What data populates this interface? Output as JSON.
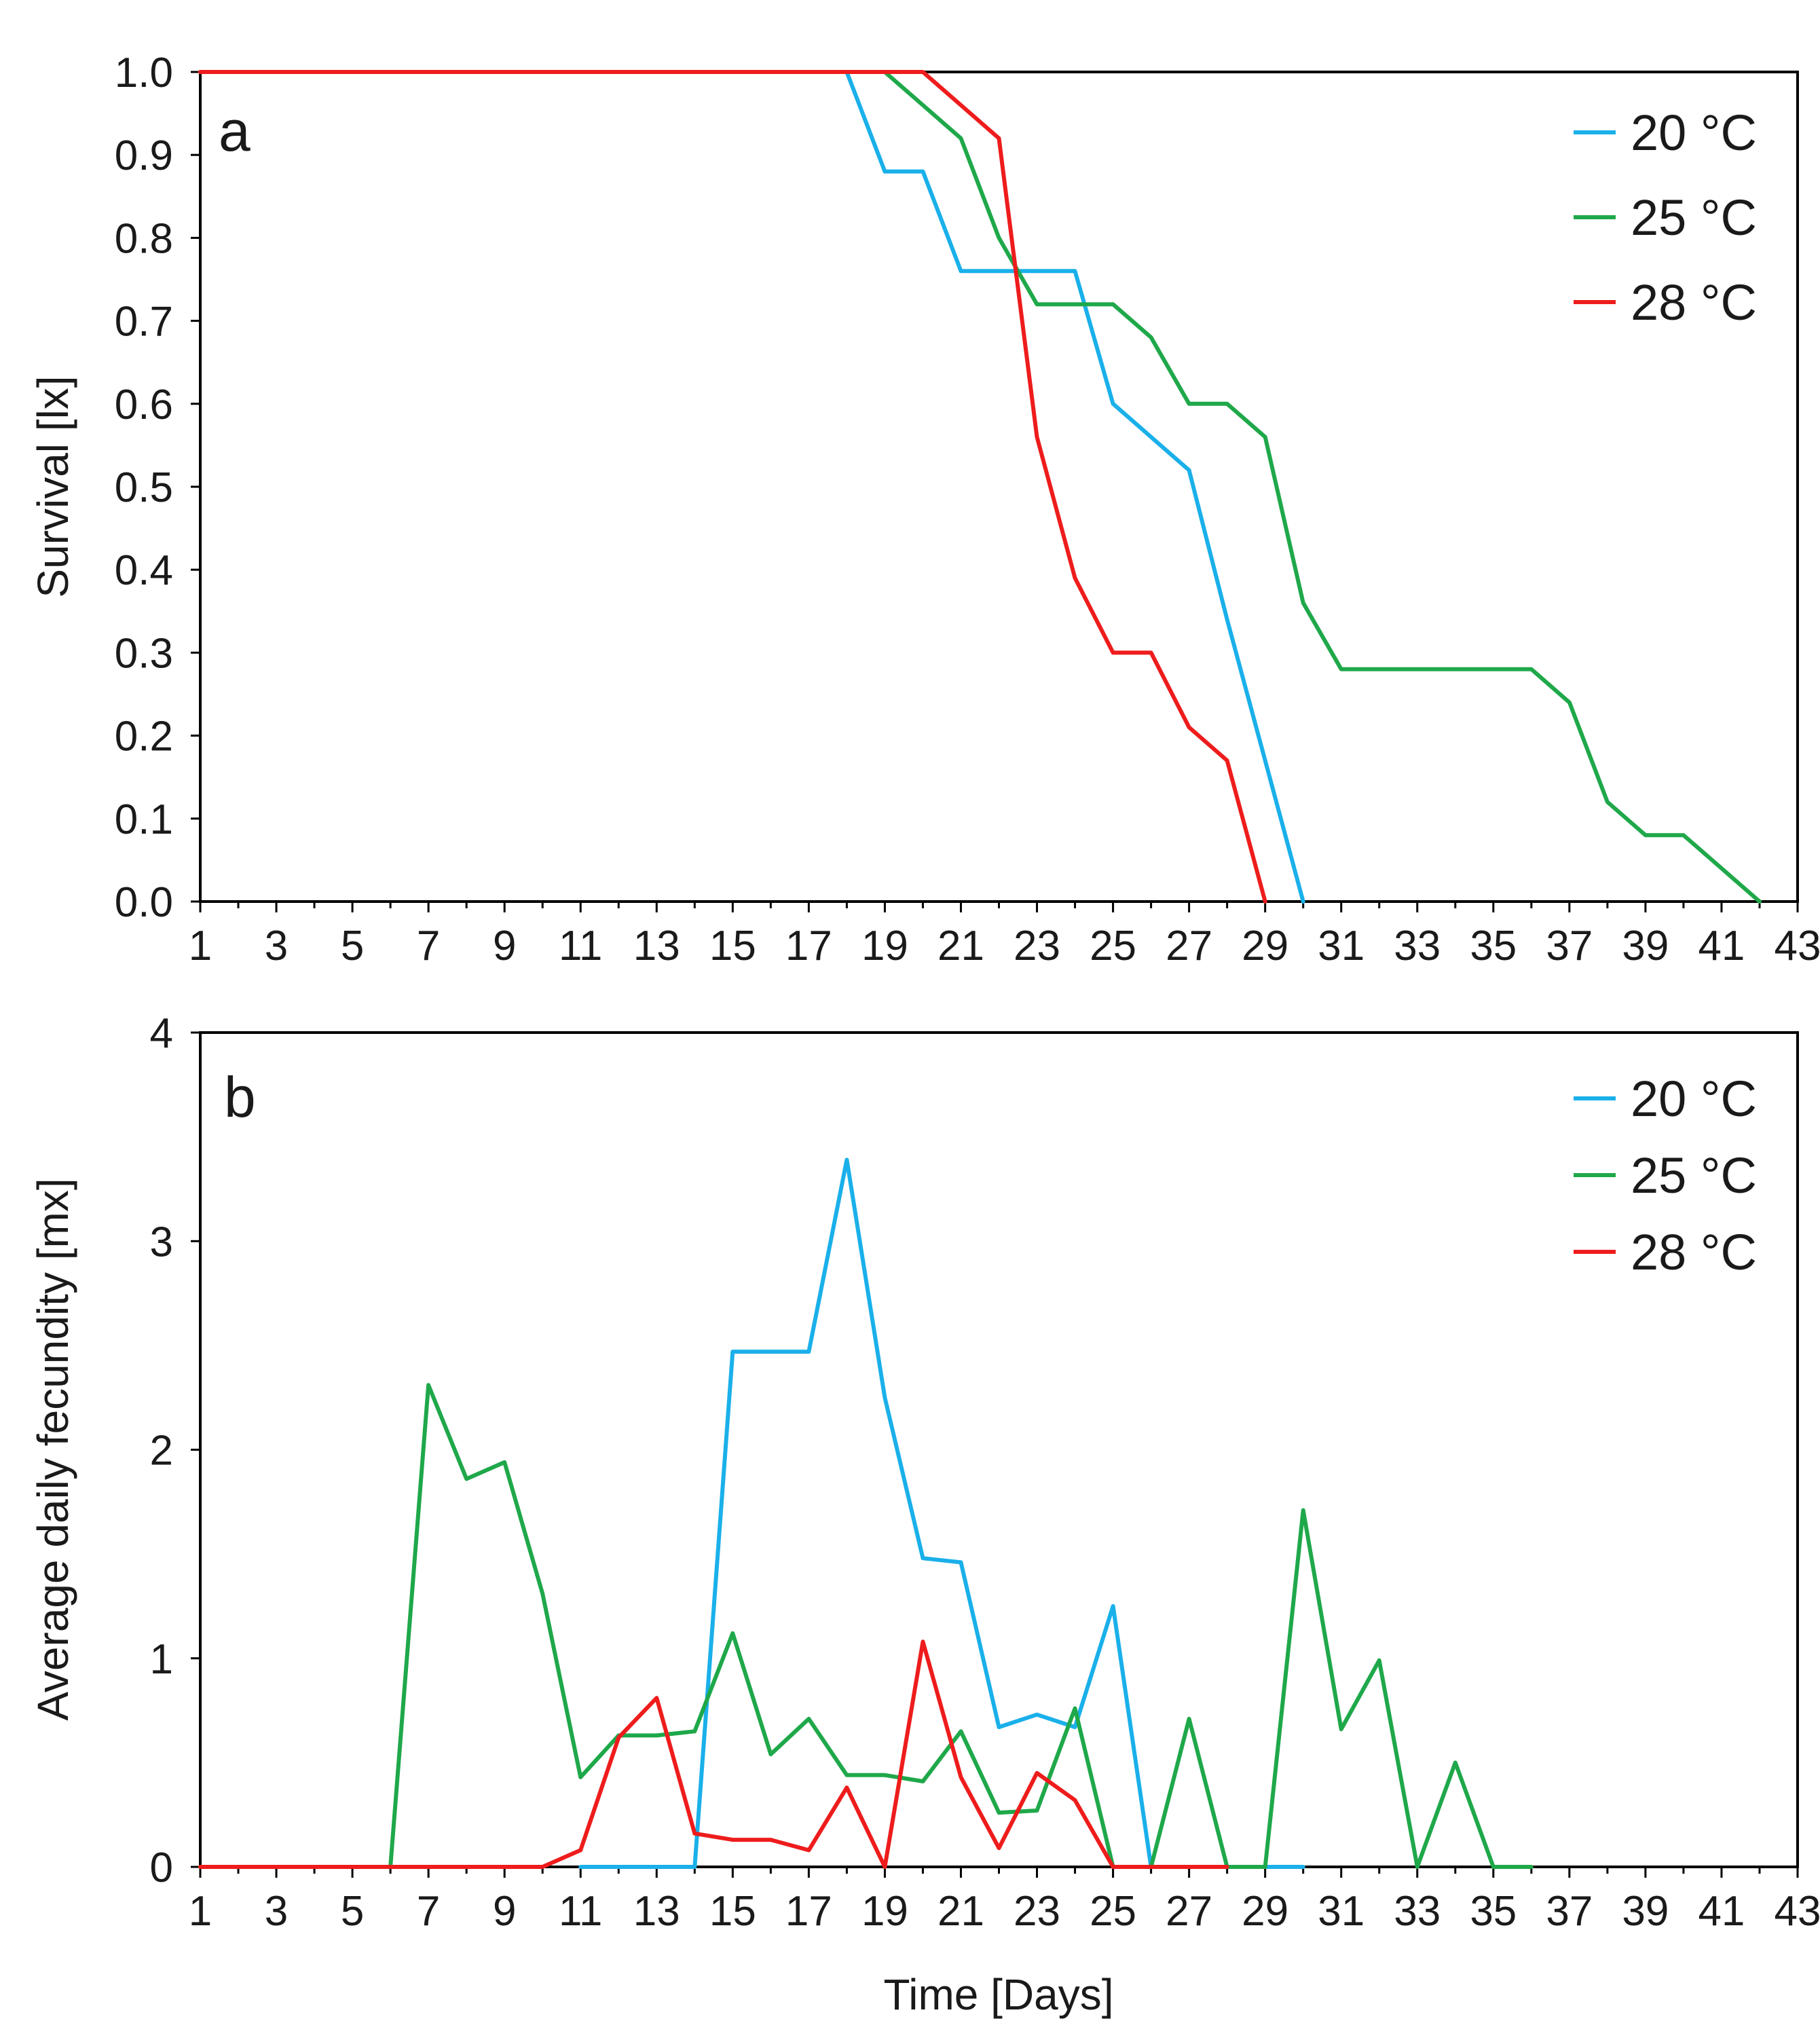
{
  "chart_data": [
    {
      "type": "line",
      "panel_label": "a",
      "xlabel": "",
      "ylabel": "Survival [lx]",
      "xlim": [
        1,
        43
      ],
      "ylim": [
        0,
        1
      ],
      "x_tick_labels": [
        "1",
        "3",
        "5",
        "7",
        "9",
        "11",
        "13",
        "15",
        "17",
        "19",
        "21",
        "23",
        "25",
        "27",
        "29",
        "31",
        "33",
        "35",
        "37",
        "39",
        "41",
        "43"
      ],
      "y_tick_labels": [
        "0.0",
        "0.1",
        "0.2",
        "0.3",
        "0.4",
        "0.5",
        "0.6",
        "0.7",
        "0.8",
        "0.9",
        "1.0"
      ],
      "grid": false,
      "legend_position": "top-right",
      "legend": [
        "20 °C",
        "25 °C",
        "28 °C"
      ],
      "series": [
        {
          "name": "20 °C",
          "color": "#1ab0ea",
          "x": [
            1,
            18,
            19,
            20,
            21,
            22,
            23,
            24,
            25,
            26,
            27,
            28,
            29,
            30
          ],
          "y": [
            1.0,
            1.0,
            0.88,
            0.88,
            0.76,
            0.76,
            0.76,
            0.76,
            0.6,
            0.56,
            0.52,
            0.34,
            0.17,
            0.0
          ]
        },
        {
          "name": "25 °C",
          "color": "#1fa84a",
          "x": [
            1,
            19,
            20,
            21,
            22,
            23,
            24,
            25,
            26,
            27,
            28,
            29,
            30,
            31,
            32,
            33,
            34,
            35,
            36,
            37,
            38,
            39,
            40,
            41,
            42
          ],
          "y": [
            1.0,
            1.0,
            0.96,
            0.92,
            0.8,
            0.72,
            0.72,
            0.72,
            0.68,
            0.6,
            0.6,
            0.56,
            0.36,
            0.28,
            0.28,
            0.28,
            0.28,
            0.28,
            0.28,
            0.24,
            0.12,
            0.08,
            0.08,
            0.04,
            0.0
          ]
        },
        {
          "name": "28 °C",
          "color": "#ee1c1c",
          "x": [
            1,
            20,
            21,
            22,
            23,
            24,
            25,
            26,
            27,
            28,
            29
          ],
          "y": [
            1.0,
            1.0,
            0.96,
            0.92,
            0.56,
            0.39,
            0.3,
            0.3,
            0.21,
            0.17,
            0.0
          ]
        }
      ]
    },
    {
      "type": "line",
      "panel_label": "b",
      "xlabel": "Time [Days]",
      "ylabel": "Average daily fecundity [mx]",
      "xlim": [
        1,
        43
      ],
      "ylim": [
        0,
        4
      ],
      "x_tick_labels": [
        "1",
        "3",
        "5",
        "7",
        "9",
        "11",
        "13",
        "15",
        "17",
        "19",
        "21",
        "23",
        "25",
        "27",
        "29",
        "31",
        "33",
        "35",
        "37",
        "39",
        "41",
        "43"
      ],
      "y_tick_labels": [
        "0",
        "1",
        "2",
        "3",
        "4"
      ],
      "grid": false,
      "legend_position": "top-right",
      "legend": [
        "20 °C",
        "25 °C",
        "28 °C"
      ],
      "series": [
        {
          "name": "20 °C",
          "color": "#1ab0ea",
          "x": [
            11,
            12,
            13,
            14,
            15,
            16,
            17,
            18,
            19,
            20,
            21,
            22,
            23,
            24,
            25,
            26,
            27,
            28,
            29,
            30
          ],
          "y": [
            0,
            0,
            0,
            0,
            2.47,
            2.47,
            2.47,
            3.39,
            2.25,
            1.48,
            1.46,
            0.67,
            0.73,
            0.67,
            1.25,
            0,
            0,
            0,
            0,
            0
          ]
        },
        {
          "name": "25 °C",
          "color": "#1fa84a",
          "x": [
            1,
            2,
            3,
            4,
            5,
            6,
            7,
            8,
            9,
            10,
            11,
            12,
            13,
            14,
            15,
            16,
            17,
            18,
            19,
            20,
            21,
            22,
            23,
            24,
            25,
            26,
            27,
            28,
            29,
            30,
            31,
            32,
            33,
            34,
            35,
            36
          ],
          "y": [
            0,
            0,
            0,
            0,
            0,
            0,
            2.31,
            1.86,
            1.94,
            1.31,
            0.43,
            0.63,
            0.63,
            0.65,
            1.12,
            0.54,
            0.71,
            0.44,
            0.44,
            0.41,
            0.65,
            0.26,
            0.27,
            0.76,
            0,
            0,
            0.71,
            0,
            0,
            1.71,
            0.66,
            0.99,
            0,
            0.5,
            0,
            0
          ]
        },
        {
          "name": "28 °C",
          "color": "#ee1c1c",
          "x": [
            1,
            2,
            3,
            4,
            5,
            6,
            7,
            8,
            9,
            10,
            11,
            12,
            13,
            14,
            15,
            16,
            17,
            18,
            19,
            20,
            21,
            22,
            23,
            24,
            25,
            26,
            27,
            28
          ],
          "y": [
            0,
            0,
            0,
            0,
            0,
            0,
            0,
            0,
            0,
            0,
            0.08,
            0.62,
            0.81,
            0.16,
            0.13,
            0.13,
            0.08,
            0.38,
            0,
            1.08,
            0.43,
            0.09,
            0.45,
            0.32,
            0,
            0,
            0,
            0
          ]
        }
      ]
    }
  ]
}
